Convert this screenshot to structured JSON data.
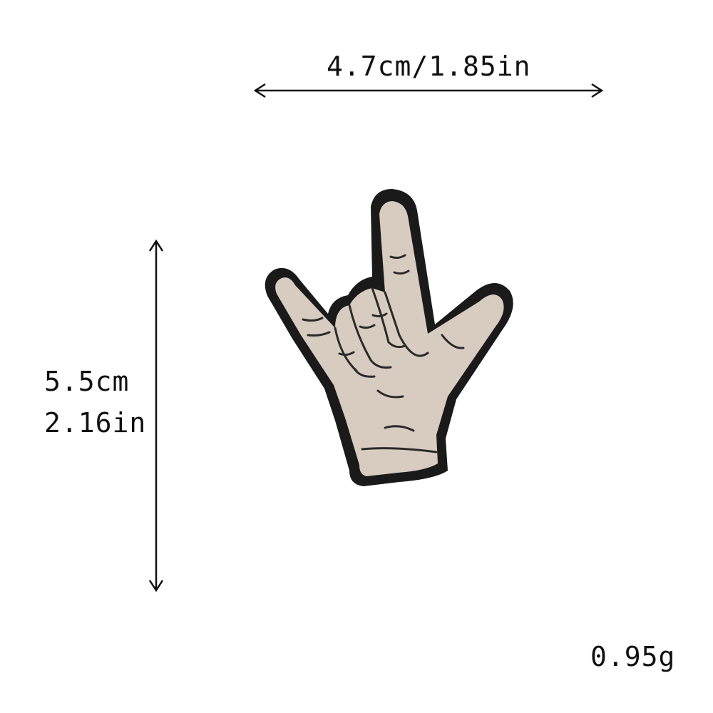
{
  "dimensions": {
    "width_label": "4.7cm/1.85in",
    "height_label_cm": "5.5cm",
    "height_label_in": "2.16in",
    "weight_label": "0.95g"
  },
  "colors": {
    "background": "#ffffff",
    "text": "#111111",
    "patch_border": "#1a1a1a",
    "patch_fill": "#d8ccc0",
    "stitch_line": "#2a2a2a"
  },
  "product_image": {
    "icon": "love-hand-sign-patch-icon"
  }
}
